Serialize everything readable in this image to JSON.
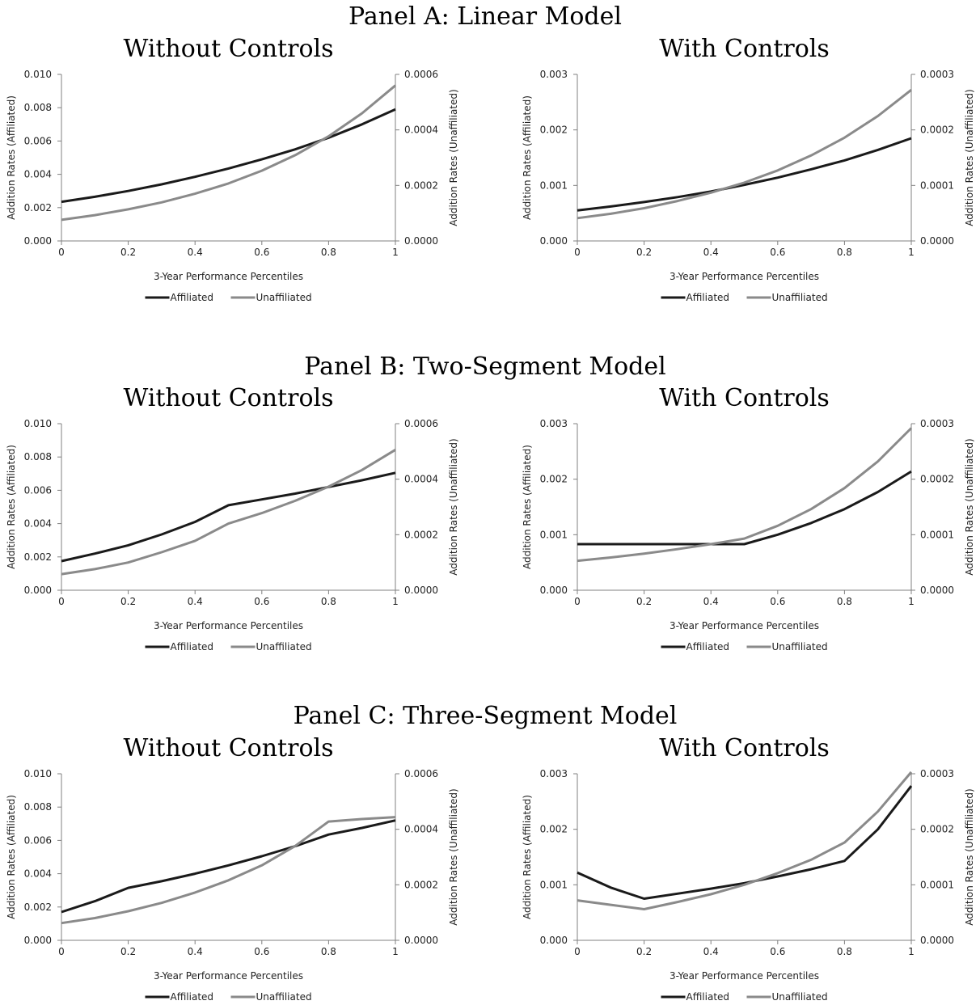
{
  "colors": {
    "affiliated": "#1a1a1a",
    "unaffiliated": "#8a8a8a",
    "axis": "#808080"
  },
  "panels": [
    {
      "title": "Panel A: Linear Model"
    },
    {
      "title": "Panel B: Two-Segment Model"
    },
    {
      "title": "Panel C: Three-Segment Model"
    }
  ],
  "chart_data": [
    {
      "type": "line",
      "panel": 0,
      "column": 0,
      "title": "Without Controls",
      "xlabel": "3-Year Performance Percentiles",
      "ylabel_left": "Addition Rates (Affiliated)",
      "ylabel_right": "Addition Rates (Unaffiliated)",
      "x": [
        0,
        0.1,
        0.2,
        0.3,
        0.4,
        0.5,
        0.6,
        0.7,
        0.8,
        0.9,
        1
      ],
      "xticks": [
        "0",
        "0.2",
        "0.4",
        "0.6",
        "0.8",
        "1"
      ],
      "xlim": [
        0,
        1
      ],
      "ylim_left": [
        0,
        0.01
      ],
      "yticks_left": [
        "0.000",
        "0.002",
        "0.004",
        "0.006",
        "0.008",
        "0.010"
      ],
      "ylim_right": [
        0,
        0.0006
      ],
      "yticks_right": [
        "0.0000",
        "0.0002",
        "0.0004",
        "0.0006"
      ],
      "legend": {
        "position": "bottom"
      },
      "series": [
        {
          "name": "Affiliated",
          "axis": "left",
          "values": [
            0.00235,
            0.00265,
            0.003,
            0.0034,
            0.00385,
            0.00435,
            0.0049,
            0.0055,
            0.0062,
            0.007,
            0.0079
          ]
        },
        {
          "name": "Unaffiliated",
          "axis": "right",
          "values": [
            7.6e-05,
            9.3e-05,
            0.000114,
            0.000139,
            0.00017,
            0.000207,
            0.000253,
            0.000309,
            0.000377,
            0.00046,
            0.00056
          ]
        }
      ]
    },
    {
      "type": "line",
      "panel": 0,
      "column": 1,
      "title": "With Controls",
      "xlabel": "3-Year Performance Percentiles",
      "ylabel_left": "Addition Rates (Affiliated)",
      "ylabel_right": "Addition Rates (Unaffiliated)",
      "x": [
        0,
        0.1,
        0.2,
        0.3,
        0.4,
        0.5,
        0.6,
        0.7,
        0.8,
        0.9,
        1
      ],
      "xticks": [
        "0",
        "0.2",
        "0.4",
        "0.6",
        "0.8",
        "1"
      ],
      "xlim": [
        0,
        1
      ],
      "ylim_left": [
        0,
        0.003
      ],
      "yticks_left": [
        "0.000",
        "0.001",
        "0.002",
        "0.003"
      ],
      "ylim_right": [
        0,
        0.0003
      ],
      "yticks_right": [
        "0.0000",
        "0.0001",
        "0.0002",
        "0.0003"
      ],
      "legend": {
        "position": "bottom"
      },
      "series": [
        {
          "name": "Affiliated",
          "axis": "left",
          "values": [
            0.00055,
            0.00062,
            0.0007,
            0.00079,
            0.00089,
            0.00101,
            0.00114,
            0.00129,
            0.00145,
            0.00164,
            0.00185
          ]
        },
        {
          "name": "Unaffiliated",
          "axis": "right",
          "values": [
            4.1e-05,
            4.9e-05,
            5.9e-05,
            7.2e-05,
            8.7e-05,
            0.000105,
            0.000127,
            0.000154,
            0.000186,
            0.000225,
            0.000272
          ]
        }
      ]
    },
    {
      "type": "line",
      "panel": 1,
      "column": 0,
      "title": "Without Controls",
      "xlabel": "3-Year Performance Percentiles",
      "ylabel_left": "Addition Rates (Affiliated)",
      "ylabel_right": "Addition Rates (Unaffiliated)",
      "x": [
        0,
        0.1,
        0.2,
        0.3,
        0.4,
        0.5,
        0.6,
        0.7,
        0.8,
        0.9,
        1
      ],
      "xticks": [
        "0",
        "0.2",
        "0.4",
        "0.6",
        "0.8",
        "1"
      ],
      "xlim": [
        0,
        1
      ],
      "ylim_left": [
        0,
        0.01
      ],
      "yticks_left": [
        "0.000",
        "0.002",
        "0.004",
        "0.006",
        "0.008",
        "0.010"
      ],
      "ylim_right": [
        0,
        0.0006
      ],
      "yticks_right": [
        "0.0000",
        "0.0002",
        "0.0004",
        "0.0006"
      ],
      "legend": {
        "position": "bottom"
      },
      "series": [
        {
          "name": "Affiliated",
          "axis": "left",
          "values": [
            0.00175,
            0.0022,
            0.0027,
            0.00335,
            0.0041,
            0.0051,
            0.00545,
            0.0058,
            0.0062,
            0.0066,
            0.00705
          ]
        },
        {
          "name": "Unaffiliated",
          "axis": "right",
          "values": [
            5.8e-05,
            7.6e-05,
            0.0001,
            0.000137,
            0.000178,
            0.00024,
            0.000278,
            0.000322,
            0.000373,
            0.000433,
            0.000506
          ]
        }
      ]
    },
    {
      "type": "line",
      "panel": 1,
      "column": 1,
      "title": "With Controls",
      "xlabel": "3-Year Performance Percentiles",
      "ylabel_left": "Addition Rates (Affiliated)",
      "ylabel_right": "Addition Rates (Unaffiliated)",
      "x": [
        0,
        0.1,
        0.2,
        0.3,
        0.4,
        0.5,
        0.6,
        0.7,
        0.8,
        0.9,
        1
      ],
      "xticks": [
        "0",
        "0.2",
        "0.4",
        "0.6",
        "0.8",
        "1"
      ],
      "xlim": [
        0,
        1
      ],
      "ylim_left": [
        0,
        0.003
      ],
      "yticks_left": [
        "0.000",
        "0.001",
        "0.002",
        "0.003"
      ],
      "ylim_right": [
        0,
        0.0003
      ],
      "yticks_right": [
        "0.0000",
        "0.0001",
        "0.0002",
        "0.0003"
      ],
      "legend": {
        "position": "bottom"
      },
      "series": [
        {
          "name": "Affiliated",
          "axis": "left",
          "values": [
            0.00083,
            0.00083,
            0.00083,
            0.00083,
            0.00083,
            0.00083,
            0.001,
            0.00121,
            0.00146,
            0.00177,
            0.00214
          ]
        },
        {
          "name": "Unaffiliated",
          "axis": "right",
          "values": [
            5.3e-05,
            5.9e-05,
            6.6e-05,
            7.4e-05,
            8.3e-05,
            9.3e-05,
            0.000116,
            0.000146,
            0.000184,
            0.000232,
            0.000292
          ]
        }
      ]
    },
    {
      "type": "line",
      "panel": 2,
      "column": 0,
      "title": "Without Controls",
      "xlabel": "3-Year Performance Percentiles",
      "ylabel_left": "Addition Rates (Affiliated)",
      "ylabel_right": "Addition Rates (Unaffiliated)",
      "x": [
        0,
        0.1,
        0.2,
        0.3,
        0.4,
        0.5,
        0.6,
        0.7,
        0.8,
        0.9,
        1
      ],
      "xticks": [
        "0",
        "0.2",
        "0.4",
        "0.6",
        "0.8",
        "1"
      ],
      "xlim": [
        0,
        1
      ],
      "ylim_left": [
        0,
        0.01
      ],
      "yticks_left": [
        "0.000",
        "0.002",
        "0.004",
        "0.006",
        "0.008",
        "0.010"
      ],
      "ylim_right": [
        0,
        0.0006
      ],
      "yticks_right": [
        "0.0000",
        "0.0002",
        "0.0004",
        "0.0006"
      ],
      "legend": {
        "position": "bottom"
      },
      "series": [
        {
          "name": "Affiliated",
          "axis": "left",
          "values": [
            0.0017,
            0.00235,
            0.00315,
            0.00355,
            0.004,
            0.0045,
            0.00505,
            0.00565,
            0.00635,
            0.00675,
            0.0072
          ]
        },
        {
          "name": "Unaffiliated",
          "axis": "right",
          "values": [
            6.2e-05,
            8e-05,
            0.000105,
            0.000135,
            0.000172,
            0.000216,
            0.00027,
            0.00034,
            0.000428,
            0.000437,
            0.000444
          ]
        }
      ]
    },
    {
      "type": "line",
      "panel": 2,
      "column": 1,
      "title": "With Controls",
      "xlabel": "3-Year Performance Percentiles",
      "ylabel_left": "Addition Rates (Affiliated)",
      "ylabel_right": "Addition Rates (Unaffiliated)",
      "x": [
        0,
        0.1,
        0.2,
        0.3,
        0.4,
        0.5,
        0.6,
        0.7,
        0.8,
        0.9,
        1
      ],
      "xticks": [
        "0",
        "0.2",
        "0.4",
        "0.6",
        "0.8",
        "1"
      ],
      "xlim": [
        0,
        1
      ],
      "ylim_left": [
        0,
        0.003
      ],
      "yticks_left": [
        "0.000",
        "0.001",
        "0.002",
        "0.003"
      ],
      "ylim_right": [
        0,
        0.0003
      ],
      "yticks_right": [
        "0.0000",
        "0.0001",
        "0.0002",
        "0.0003"
      ],
      "legend": {
        "position": "bottom"
      },
      "series": [
        {
          "name": "Affiliated",
          "axis": "left",
          "values": [
            0.00122,
            0.00095,
            0.00075,
            0.00084,
            0.00093,
            0.00103,
            0.00115,
            0.00128,
            0.00143,
            0.002,
            0.00278
          ]
        },
        {
          "name": "Unaffiliated",
          "axis": "right",
          "values": [
            7.2e-05,
            6.4e-05,
            5.6e-05,
            6.9e-05,
            8.3e-05,
            0.0001,
            0.000121,
            0.000145,
            0.000176,
            0.000232,
            0.000303
          ]
        }
      ]
    }
  ]
}
